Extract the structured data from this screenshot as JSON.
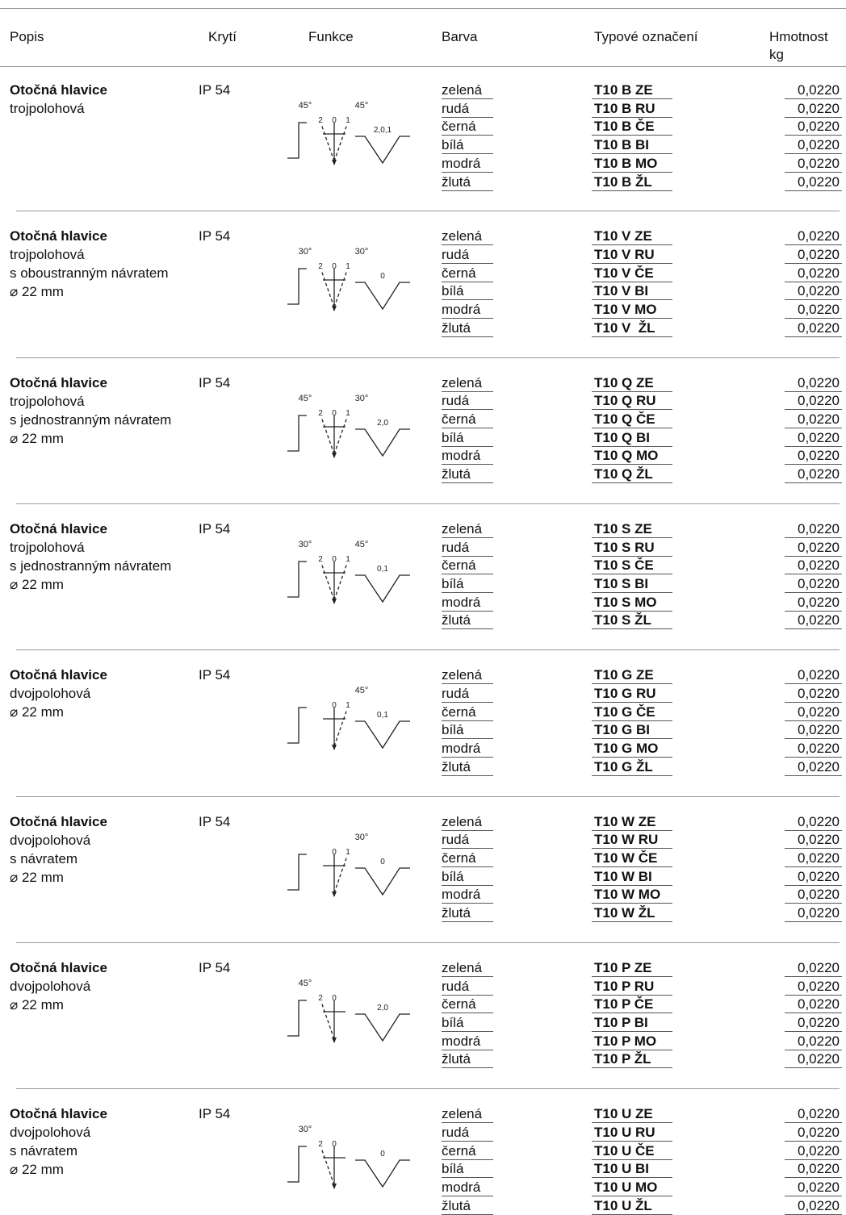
{
  "header": {
    "columns": [
      "Popis",
      "Krytí",
      "Funkce",
      "Barva",
      "Typové označení",
      "Hmotnost",
      "kg"
    ]
  },
  "groups": [
    {
      "description": [
        "Otočná hlavice",
        "trojpolohová"
      ],
      "protection": "IP 54",
      "diagram": {
        "angles": {
          "left": "45°",
          "right": "45°"
        },
        "positions": [
          "2",
          "0",
          "1"
        ],
        "symbol": "2,0,1"
      },
      "rows": [
        [
          "zelená",
          "T10 B ZE",
          "0,0220"
        ],
        [
          "rudá",
          "T10 B RU",
          "0,0220"
        ],
        [
          "černá",
          "T10 B ČE",
          "0,0220"
        ],
        [
          "bílá",
          "T10 B BI",
          "0,0220"
        ],
        [
          "modrá",
          "T10 B MO",
          "0,0220"
        ],
        [
          "žlutá",
          "T10 B ŽL",
          "0,0220"
        ]
      ]
    },
    {
      "description": [
        "Otočná hlavice",
        "trojpolohová",
        "s oboustranným návratem",
        "⌀ 22 mm"
      ],
      "protection": "IP 54",
      "diagram": {
        "angles": {
          "left": "30°",
          "right": "30°"
        },
        "positions": [
          "2",
          "0",
          "1"
        ],
        "symbol": "0"
      },
      "rows": [
        [
          "zelená",
          "T10 V ZE",
          "0,0220"
        ],
        [
          "rudá",
          "T10 V RU",
          "0,0220"
        ],
        [
          "černá",
          "T10 V ČE",
          "0,0220"
        ],
        [
          "bílá",
          "T10 V BI",
          "0,0220"
        ],
        [
          "modrá",
          "T10 V MO",
          "0,0220"
        ],
        [
          "žlutá",
          "T10 V  ŽL",
          "0,0220"
        ]
      ]
    },
    {
      "description": [
        "Otočná hlavice",
        "trojpolohová",
        "s jednostranným návratem",
        "⌀ 22 mm"
      ],
      "protection": "IP 54",
      "diagram": {
        "angles": {
          "left": "45°",
          "right": "30°"
        },
        "positions": [
          "2",
          "0",
          "1"
        ],
        "symbol": "2,0"
      },
      "rows": [
        [
          "zelená",
          "T10 Q ZE",
          "0,0220"
        ],
        [
          "rudá",
          "T10 Q RU",
          "0,0220"
        ],
        [
          "černá",
          "T10 Q ČE",
          "0,0220"
        ],
        [
          "bílá",
          "T10 Q BI",
          "0,0220"
        ],
        [
          "modrá",
          "T10 Q MO",
          "0,0220"
        ],
        [
          "žlutá",
          "T10 Q ŽL",
          "0,0220"
        ]
      ]
    },
    {
      "description": [
        "Otočná hlavice",
        "trojpolohová",
        "s jednostranným návratem",
        "⌀ 22 mm"
      ],
      "protection": "IP 54",
      "diagram": {
        "angles": {
          "left": "30°",
          "right": "45°"
        },
        "positions": [
          "2",
          "0",
          "1"
        ],
        "symbol": "0,1"
      },
      "rows": [
        [
          "zelená",
          "T10 S ZE",
          "0,0220"
        ],
        [
          "rudá",
          "T10 S RU",
          "0,0220"
        ],
        [
          "černá",
          "T10 S ČE",
          "0,0220"
        ],
        [
          "bílá",
          "T10 S BI",
          "0,0220"
        ],
        [
          "modrá",
          "T10 S MO",
          "0,0220"
        ],
        [
          "žlutá",
          "T10 S ŽL",
          "0,0220"
        ]
      ]
    },
    {
      "description": [
        "Otočná hlavice",
        "dvojpolohová",
        "⌀ 22 mm"
      ],
      "protection": "IP 54",
      "diagram": {
        "angles": {
          "right": "45°"
        },
        "positions": [
          "0",
          "1"
        ],
        "symbol": "0,1"
      },
      "rows": [
        [
          "zelená",
          "T10 G ZE",
          "0,0220"
        ],
        [
          "rudá",
          "T10 G RU",
          "0,0220"
        ],
        [
          "černá",
          "T10 G ČE",
          "0,0220"
        ],
        [
          "bílá",
          "T10 G BI",
          "0,0220"
        ],
        [
          "modrá",
          "T10 G MO",
          "0,0220"
        ],
        [
          "žlutá",
          "T10 G ŽL",
          "0,0220"
        ]
      ]
    },
    {
      "description": [
        "Otočná hlavice",
        "dvojpolohová",
        "s návratem",
        "⌀ 22 mm"
      ],
      "protection": "IP 54",
      "diagram": {
        "angles": {
          "right": "30°"
        },
        "positions": [
          "0",
          "1"
        ],
        "symbol": "0"
      },
      "rows": [
        [
          "zelená",
          "T10 W ZE",
          "0,0220"
        ],
        [
          "rudá",
          "T10 W RU",
          "0,0220"
        ],
        [
          "černá",
          "T10 W ČE",
          "0,0220"
        ],
        [
          "bílá",
          "T10 W BI",
          "0,0220"
        ],
        [
          "modrá",
          "T10 W MO",
          "0,0220"
        ],
        [
          "žlutá",
          "T10 W ŽL",
          "0,0220"
        ]
      ]
    },
    {
      "description": [
        "Otočná hlavice",
        "dvojpolohová",
        "⌀ 22 mm"
      ],
      "protection": "IP 54",
      "diagram": {
        "angles": {
          "left": "45°"
        },
        "positions": [
          "2",
          "0"
        ],
        "symbol": "2,0"
      },
      "rows": [
        [
          "zelená",
          "T10 P ZE",
          "0,0220"
        ],
        [
          "rudá",
          "T10 P RU",
          "0,0220"
        ],
        [
          "černá",
          "T10 P ČE",
          "0,0220"
        ],
        [
          "bílá",
          "T10 P BI",
          "0,0220"
        ],
        [
          "modrá",
          "T10 P MO",
          "0,0220"
        ],
        [
          "žlutá",
          "T10 P ŽL",
          "0,0220"
        ]
      ]
    },
    {
      "description": [
        "Otočná hlavice",
        "dvojpolohová",
        "s návratem",
        "⌀ 22 mm"
      ],
      "protection": "IP 54",
      "diagram": {
        "angles": {
          "left": "30°"
        },
        "positions": [
          "2",
          "0"
        ],
        "symbol": "0"
      },
      "rows": [
        [
          "zelená",
          "T10 U ZE",
          "0,0220"
        ],
        [
          "rudá",
          "T10 U RU",
          "0,0220"
        ],
        [
          "černá",
          "T10 U ČE",
          "0,0220"
        ],
        [
          "bílá",
          "T10 U BI",
          "0,0220"
        ],
        [
          "modrá",
          "T10 U MO",
          "0,0220"
        ],
        [
          "žlutá",
          "T10 U ŽL",
          "0,0220"
        ]
      ]
    }
  ]
}
